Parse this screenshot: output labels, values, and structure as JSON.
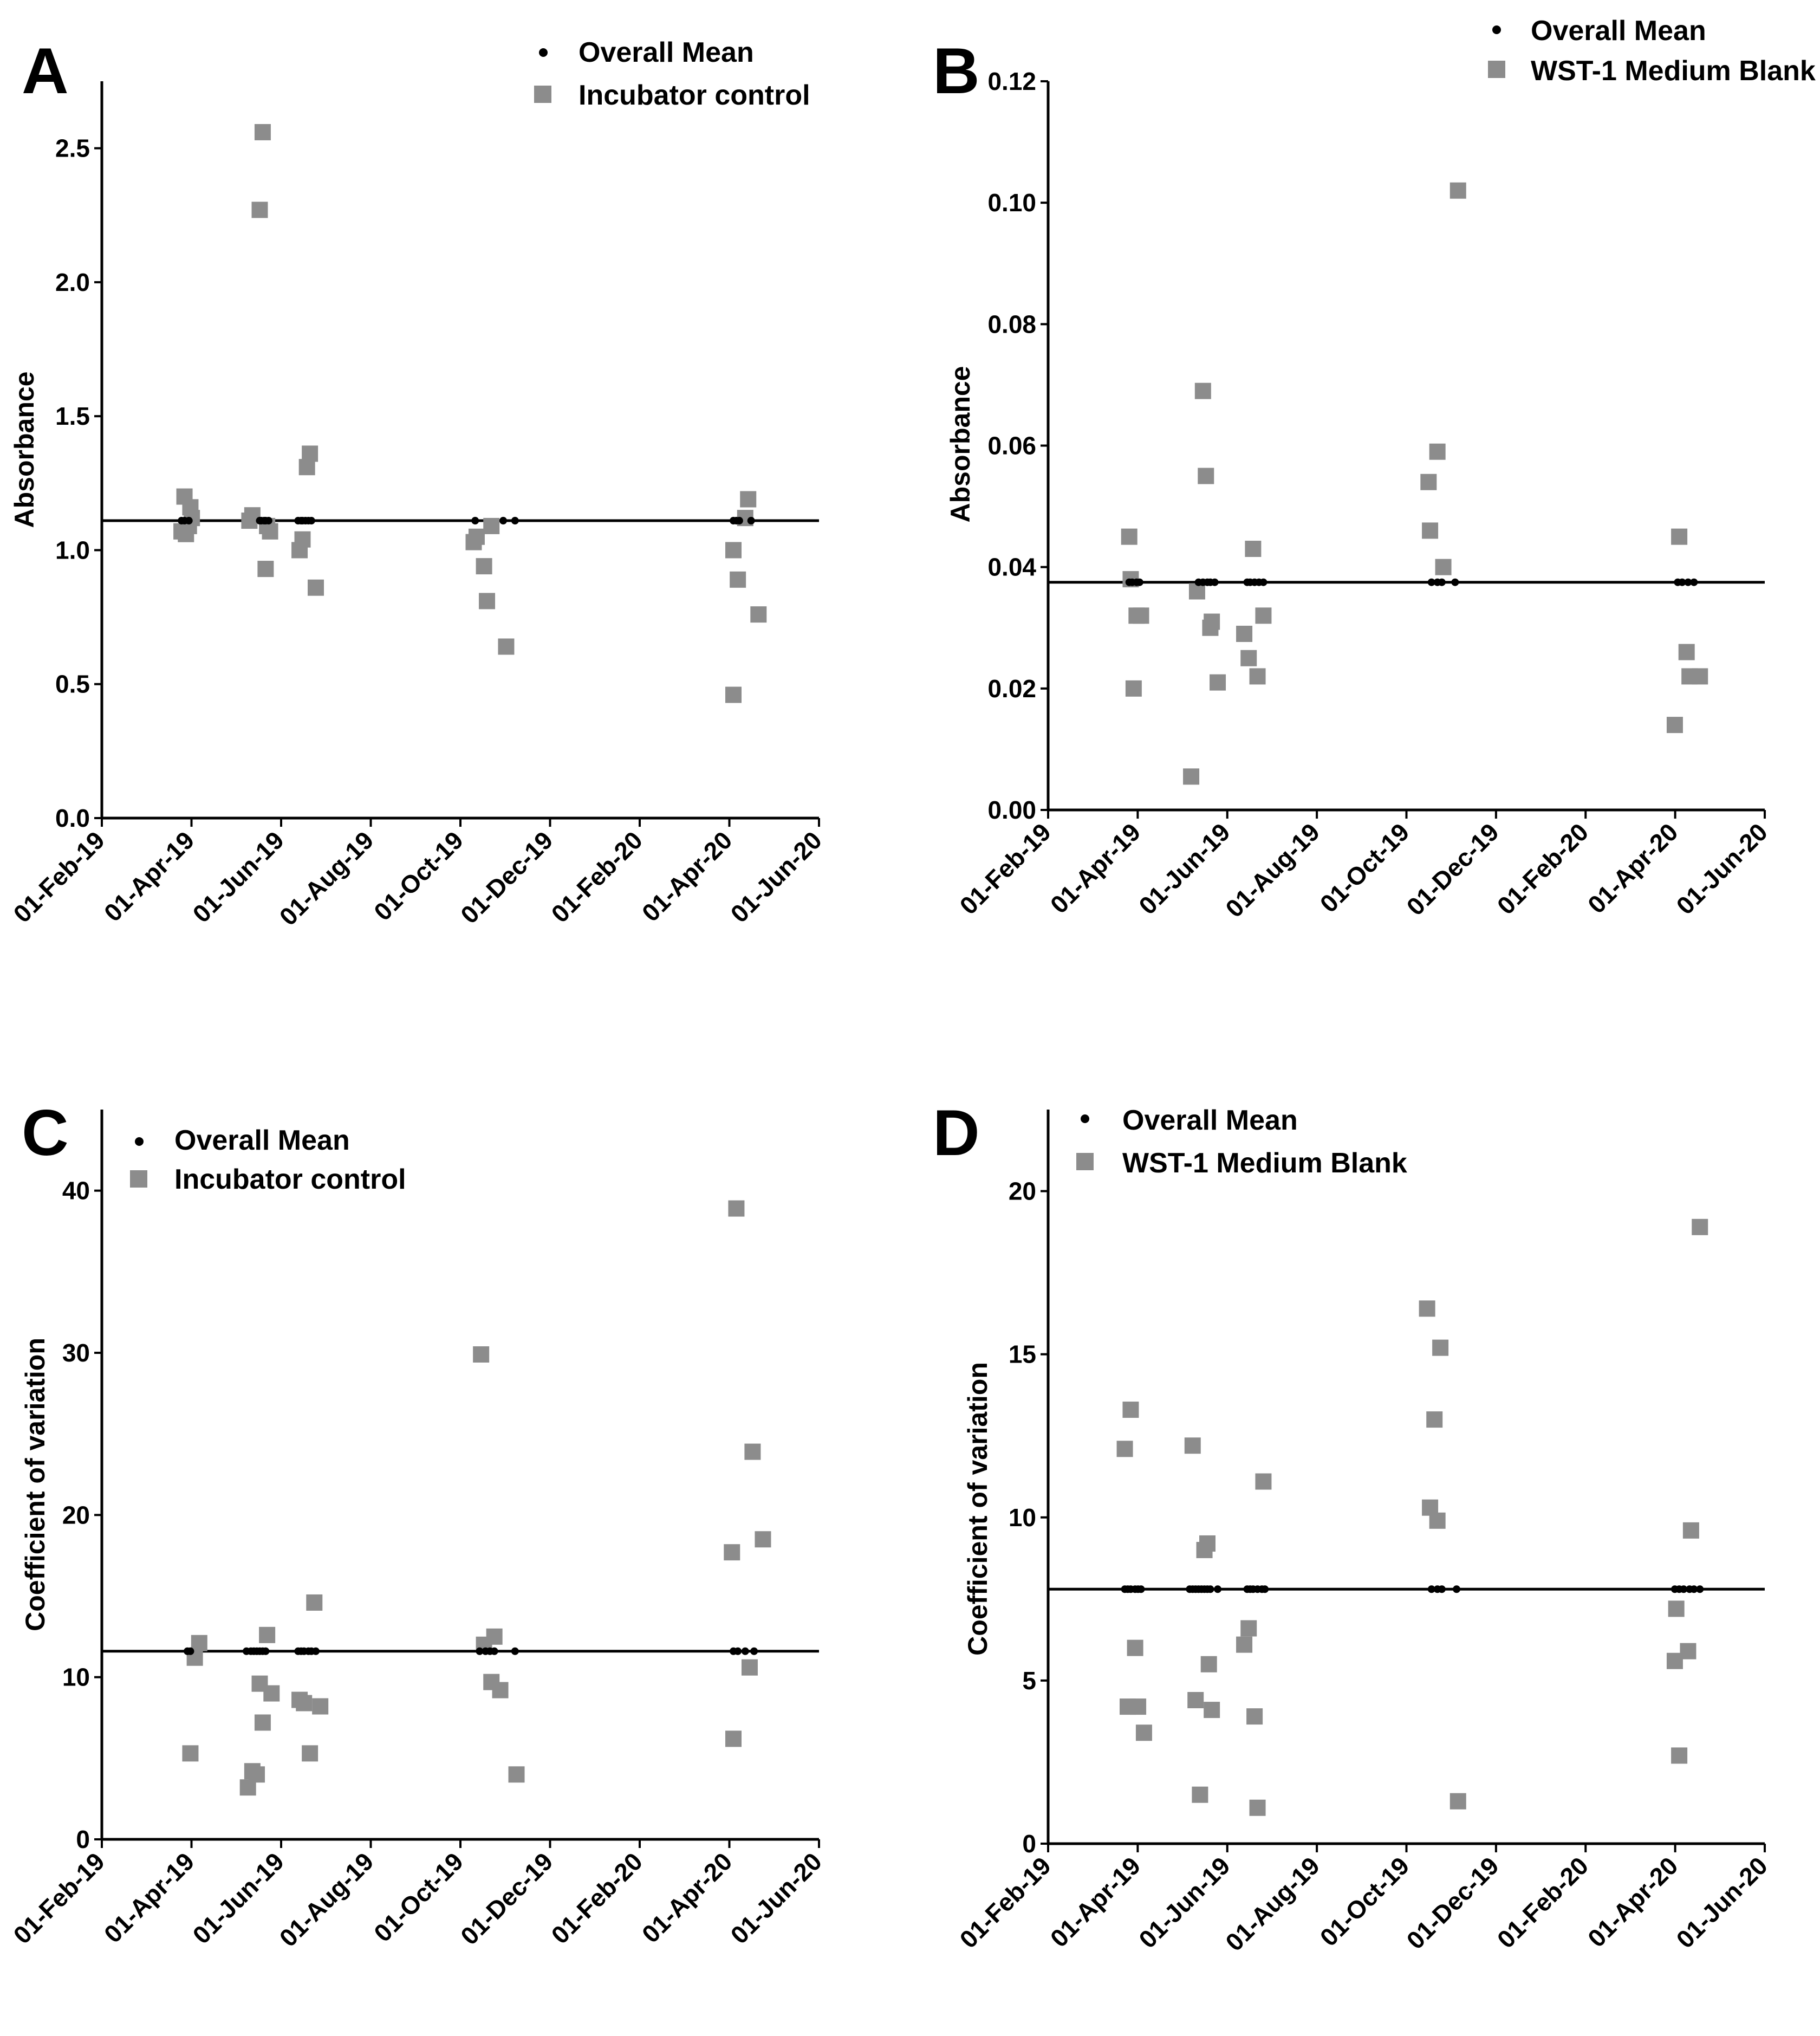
{
  "figure": {
    "colors": {
      "square": "#8c8c8c",
      "mean": "#000000",
      "axis": "#000000"
    }
  },
  "chart_data": [
    {
      "panel": "A",
      "type": "scatter",
      "title": "",
      "xlabel": "",
      "ylabel": "Absorbance",
      "x_tick_labels": [
        "01-Feb-19",
        "01-Apr-19",
        "01-Jun-19",
        "01-Aug-19",
        "01-Oct-19",
        "01-Dec-19",
        "01-Feb-20",
        "01-Apr-20",
        "01-Jun-20"
      ],
      "x_range_days": [
        0,
        486
      ],
      "y_range": [
        0,
        2.75
      ],
      "y_ticks": [
        0,
        0.5,
        1,
        1.5,
        2,
        2.5
      ],
      "y_tick_labels": [
        "0.0",
        "0.5",
        "1.0",
        "1.5",
        "2.0",
        "2.5"
      ],
      "legend": {
        "placement": "top-right",
        "mean_label": "Overall Mean",
        "series_label": "Incubator control"
      },
      "overall_mean": 1.11,
      "mean_dates": [
        54,
        56,
        59,
        107,
        108,
        110,
        111,
        113,
        133,
        135,
        136,
        138,
        140,
        142,
        253,
        272,
        280,
        428,
        430,
        432,
        440
      ],
      "points": [
        {
          "x": 54,
          "y": 1.07
        },
        {
          "x": 56,
          "y": 1.2
        },
        {
          "x": 57,
          "y": 1.06
        },
        {
          "x": 59,
          "y": 1.09
        },
        {
          "x": 60,
          "y": 1.16
        },
        {
          "x": 61,
          "y": 1.12
        },
        {
          "x": 100,
          "y": 1.11
        },
        {
          "x": 102,
          "y": 1.13
        },
        {
          "x": 107,
          "y": 2.27
        },
        {
          "x": 109,
          "y": 2.56
        },
        {
          "x": 111,
          "y": 0.93
        },
        {
          "x": 112,
          "y": 1.09
        },
        {
          "x": 114,
          "y": 1.07
        },
        {
          "x": 134,
          "y": 1.0
        },
        {
          "x": 136,
          "y": 1.04
        },
        {
          "x": 139,
          "y": 1.31
        },
        {
          "x": 141,
          "y": 1.36
        },
        {
          "x": 145,
          "y": 0.86
        },
        {
          "x": 252,
          "y": 1.03
        },
        {
          "x": 254,
          "y": 1.05
        },
        {
          "x": 259,
          "y": 0.94
        },
        {
          "x": 261,
          "y": 0.81
        },
        {
          "x": 264,
          "y": 1.09
        },
        {
          "x": 274,
          "y": 0.64
        },
        {
          "x": 428,
          "y": 1.0
        },
        {
          "x": 431,
          "y": 0.89
        },
        {
          "x": 428,
          "y": 0.46
        },
        {
          "x": 436,
          "y": 1.12
        },
        {
          "x": 438,
          "y": 1.19
        },
        {
          "x": 445,
          "y": 0.76
        }
      ]
    },
    {
      "panel": "B",
      "type": "scatter",
      "title": "",
      "xlabel": "",
      "ylabel": "Absorbance",
      "x_tick_labels": [
        "01-Feb-19",
        "01-Apr-19",
        "01-Jun-19",
        "01-Aug-19",
        "01-Oct-19",
        "01-Dec-19",
        "01-Feb-20",
        "01-Apr-20",
        "01-Jun-20"
      ],
      "x_range_days": [
        0,
        486
      ],
      "y_range": [
        0,
        0.12
      ],
      "y_ticks": [
        0,
        0.02,
        0.04,
        0.06,
        0.08,
        0.1,
        0.12
      ],
      "y_tick_labels": [
        "0.00",
        "0.02",
        "0.04",
        "0.06",
        "0.08",
        "0.10",
        "0.12"
      ],
      "legend": {
        "placement": "top-right",
        "mean_label": "Overall Mean",
        "series_label": "WST-1 Medium Blank"
      },
      "overall_mean": 0.0375,
      "mean_dates": [
        55,
        57,
        60,
        62,
        102,
        105,
        108,
        110,
        113,
        135,
        137,
        140,
        143,
        146,
        260,
        264,
        267,
        276,
        427,
        430,
        434,
        438
      ],
      "points": [
        {
          "x": 55,
          "y": 0.045
        },
        {
          "x": 56,
          "y": 0.038
        },
        {
          "x": 58,
          "y": 0.02
        },
        {
          "x": 60,
          "y": 0.032
        },
        {
          "x": 63,
          "y": 0.032
        },
        {
          "x": 97,
          "y": 0.0055
        },
        {
          "x": 101,
          "y": 0.036
        },
        {
          "x": 105,
          "y": 0.069
        },
        {
          "x": 107,
          "y": 0.055
        },
        {
          "x": 110,
          "y": 0.03
        },
        {
          "x": 111,
          "y": 0.031
        },
        {
          "x": 115,
          "y": 0.021
        },
        {
          "x": 133,
          "y": 0.029
        },
        {
          "x": 136,
          "y": 0.025
        },
        {
          "x": 139,
          "y": 0.043
        },
        {
          "x": 142,
          "y": 0.022
        },
        {
          "x": 146,
          "y": 0.032
        },
        {
          "x": 258,
          "y": 0.054
        },
        {
          "x": 259,
          "y": 0.046
        },
        {
          "x": 264,
          "y": 0.059
        },
        {
          "x": 268,
          "y": 0.04
        },
        {
          "x": 278,
          "y": 0.102
        },
        {
          "x": 425,
          "y": 0.014
        },
        {
          "x": 428,
          "y": 0.045
        },
        {
          "x": 433,
          "y": 0.026
        },
        {
          "x": 435,
          "y": 0.022
        },
        {
          "x": 442,
          "y": 0.022
        }
      ]
    },
    {
      "panel": "C",
      "type": "scatter",
      "title": "",
      "xlabel": "",
      "ylabel": "Coefficient of variation",
      "x_tick_labels": [
        "01-Feb-19",
        "01-Apr-19",
        "01-Jun-19",
        "01-Aug-19",
        "01-Oct-19",
        "01-Dec-19",
        "01-Feb-20",
        "01-Apr-20",
        "01-Jun-20"
      ],
      "x_range_days": [
        0,
        486
      ],
      "y_range": [
        0,
        45
      ],
      "y_ticks": [
        0,
        10,
        20,
        30,
        40
      ],
      "y_tick_labels": [
        "0",
        "10",
        "20",
        "30",
        "40"
      ],
      "legend": {
        "placement": "top-left",
        "mean_label": "Overall Mean",
        "series_label": "Incubator control"
      },
      "overall_mean": 11.6,
      "mean_dates": [
        58,
        60,
        98,
        101,
        103,
        105,
        107,
        109,
        111,
        133,
        135,
        137,
        140,
        142,
        145,
        256,
        260,
        263,
        266,
        280,
        428,
        431,
        436,
        442
      ],
      "points": [
        {
          "x": 60,
          "y": 5.3
        },
        {
          "x": 63,
          "y": 11.2
        },
        {
          "x": 66,
          "y": 12.1
        },
        {
          "x": 99,
          "y": 3.2
        },
        {
          "x": 102,
          "y": 4.2
        },
        {
          "x": 105,
          "y": 4.0
        },
        {
          "x": 107,
          "y": 9.6
        },
        {
          "x": 109,
          "y": 7.2
        },
        {
          "x": 112,
          "y": 12.6
        },
        {
          "x": 115,
          "y": 9.0
        },
        {
          "x": 134,
          "y": 8.6
        },
        {
          "x": 137,
          "y": 8.4
        },
        {
          "x": 141,
          "y": 5.3
        },
        {
          "x": 144,
          "y": 14.6
        },
        {
          "x": 148,
          "y": 8.2
        },
        {
          "x": 257,
          "y": 29.9
        },
        {
          "x": 259,
          "y": 12.0
        },
        {
          "x": 264,
          "y": 9.7
        },
        {
          "x": 266,
          "y": 12.5
        },
        {
          "x": 270,
          "y": 9.2
        },
        {
          "x": 281,
          "y": 4.0
        },
        {
          "x": 427,
          "y": 17.7
        },
        {
          "x": 430,
          "y": 38.9
        },
        {
          "x": 428,
          "y": 6.2
        },
        {
          "x": 439,
          "y": 10.6
        },
        {
          "x": 441,
          "y": 23.9
        },
        {
          "x": 448,
          "y": 18.5
        }
      ]
    },
    {
      "panel": "D",
      "type": "scatter",
      "title": "",
      "xlabel": "",
      "ylabel": "Coefficient of variation",
      "x_tick_labels": [
        "01-Feb-19",
        "01-Apr-19",
        "01-Jun-19",
        "01-Aug-19",
        "01-Oct-19",
        "01-Dec-19",
        "01-Feb-20",
        "01-Apr-20",
        "01-Jun-20"
      ],
      "x_range_days": [
        0,
        486
      ],
      "y_range": [
        0,
        22.5
      ],
      "y_ticks": [
        0,
        5,
        10,
        15,
        20
      ],
      "y_tick_labels": [
        "0",
        "5",
        "10",
        "15",
        "20"
      ],
      "legend": {
        "placement": "top-left",
        "mean_label": "Overall Mean",
        "series_label": "WST-1 Medium Blank"
      },
      "overall_mean": 7.8,
      "mean_dates": [
        52,
        54,
        56,
        59,
        61,
        63,
        96,
        98,
        100,
        102,
        104,
        106,
        108,
        110,
        115,
        135,
        137,
        139,
        142,
        145,
        147,
        260,
        264,
        267,
        277,
        425,
        428,
        431,
        435,
        438,
        442
      ],
      "points": [
        {
          "x": 52,
          "y": 12.1
        },
        {
          "x": 56,
          "y": 13.3
        },
        {
          "x": 54,
          "y": 4.2
        },
        {
          "x": 59,
          "y": 6.0
        },
        {
          "x": 61,
          "y": 4.2
        },
        {
          "x": 65,
          "y": 3.4
        },
        {
          "x": 98,
          "y": 12.2
        },
        {
          "x": 100,
          "y": 4.4
        },
        {
          "x": 103,
          "y": 1.5
        },
        {
          "x": 106,
          "y": 9.0
        },
        {
          "x": 108,
          "y": 9.2
        },
        {
          "x": 109,
          "y": 5.5
        },
        {
          "x": 111,
          "y": 4.1
        },
        {
          "x": 133,
          "y": 6.1
        },
        {
          "x": 136,
          "y": 6.6
        },
        {
          "x": 140,
          "y": 3.9
        },
        {
          "x": 142,
          "y": 1.1
        },
        {
          "x": 146,
          "y": 11.1
        },
        {
          "x": 257,
          "y": 16.4
        },
        {
          "x": 259,
          "y": 10.3
        },
        {
          "x": 262,
          "y": 13.0
        },
        {
          "x": 264,
          "y": 9.9
        },
        {
          "x": 266,
          "y": 15.2
        },
        {
          "x": 278,
          "y": 1.3
        },
        {
          "x": 425,
          "y": 5.6
        },
        {
          "x": 426,
          "y": 7.2
        },
        {
          "x": 428,
          "y": 2.7
        },
        {
          "x": 434,
          "y": 5.9
        },
        {
          "x": 436,
          "y": 9.6
        },
        {
          "x": 442,
          "y": 18.9
        }
      ]
    }
  ]
}
